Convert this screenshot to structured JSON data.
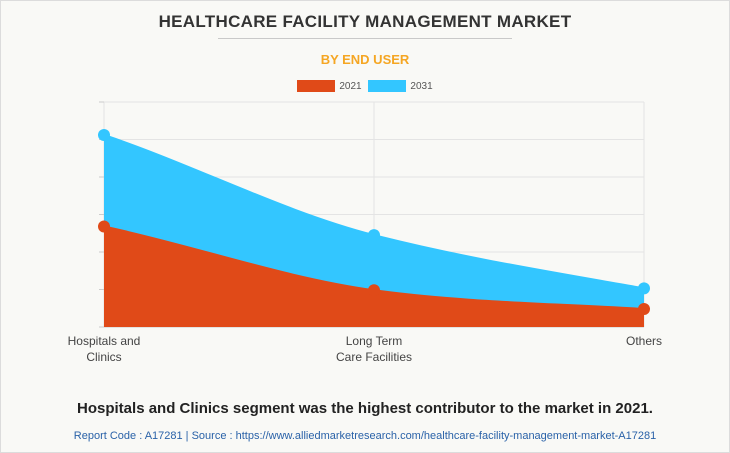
{
  "chart_data": {
    "type": "area",
    "title": "HEALTHCARE FACILITY MANAGEMENT MARKET",
    "subtitle": "BY END USER",
    "categories": [
      "Hospitals and Clinics",
      "Long Term Care Facilities",
      "Others"
    ],
    "category_lines": [
      [
        "Hospitals and",
        "Clinics"
      ],
      [
        "Long Term",
        "Care Facilities"
      ],
      [
        "Others"
      ]
    ],
    "series": [
      {
        "name": "2021",
        "color": "#e04a18",
        "values": [
          26.8,
          9.8,
          4.8
        ]
      },
      {
        "name": "2031",
        "color": "#33c6ff",
        "values": [
          51.2,
          24.5,
          10.3
        ]
      }
    ],
    "ylim": [
      0,
      60
    ],
    "xlabel": "",
    "ylabel": "",
    "grid": true,
    "legend": "top-center"
  },
  "footer": {
    "summary": "Hospitals and Clinics segment was the highest contributor to the market in 2021.",
    "source": "Report Code : A17281  |  Source : https://www.alliedmarketresearch.com/healthcare-facility-management-market-A17281"
  }
}
